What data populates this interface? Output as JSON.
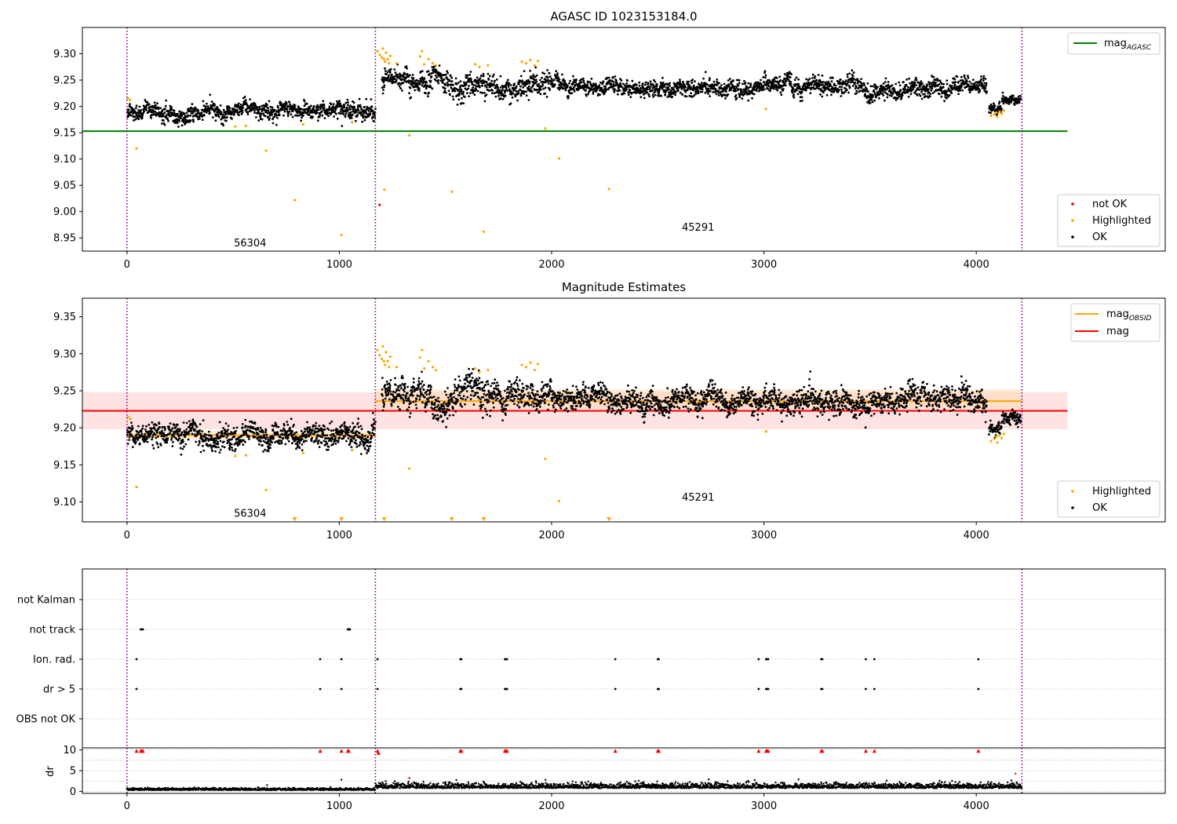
{
  "figure": {
    "colors": {
      "ok": "#000000",
      "highlighted": "#FFA500",
      "not_ok": "#FF0000",
      "mag_agasc": "#008000",
      "mag": "#FF0000",
      "mag_obsid": "#FFA500",
      "obsid_boundary": "#800080",
      "band_mag": "#FFC0C0",
      "band_obsid": "#FFD8A8",
      "grid": "#B0B0B0"
    }
  },
  "chart_data": [
    {
      "type": "scatter",
      "title": "AGASC ID 1023153184.0",
      "xlim": [
        -210,
        4890
      ],
      "ylim": [
        8.925,
        9.35
      ],
      "xticks": [
        0,
        1000,
        2000,
        3000,
        4000
      ],
      "yticks": [
        8.95,
        9.0,
        9.05,
        9.1,
        9.15,
        9.2,
        9.25,
        9.3
      ],
      "ytick_labels": [
        "8.95",
        "9.00",
        "9.05",
        "9.10",
        "9.15",
        "9.20",
        "9.25",
        "9.30"
      ],
      "obsid_boundaries": [
        0,
        1170,
        4215
      ],
      "obsid_labels": [
        {
          "text": "56304",
          "x": 580,
          "y": 8.94
        },
        {
          "text": "45291",
          "x": 2690,
          "y": 8.97
        }
      ],
      "lines": [
        {
          "name": "mag",
          "subscript": "AGASC",
          "y": 9.153,
          "x_range": [
            -210,
            4430
          ],
          "color": "#008000"
        }
      ],
      "series": [
        {
          "name": "OK",
          "color": "#000000",
          "segments": [
            {
              "x_range": [
                0,
                1170
              ],
              "level": 9.19,
              "spread": 0.012
            },
            {
              "x_range": [
                1200,
                1400
              ],
              "level": 9.25,
              "spread": 0.015
            },
            {
              "x_range": [
                1400,
                1700
              ],
              "level": 9.24,
              "spread": 0.017
            },
            {
              "x_range": [
                1700,
                2000
              ],
              "level": 9.245,
              "spread": 0.017
            },
            {
              "x_range": [
                2000,
                3200
              ],
              "level": 9.235,
              "spread": 0.012
            },
            {
              "x_range": [
                3200,
                4050
              ],
              "level": 9.235,
              "spread": 0.013
            },
            {
              "x_range": [
                4060,
                4120
              ],
              "level": 9.2,
              "spread": 0.008
            },
            {
              "x_range": [
                4120,
                4210
              ],
              "level": 9.215,
              "spread": 0.007
            }
          ]
        },
        {
          "name": "Highlighted",
          "color": "#FFA500",
          "points": [
            [
              5,
              9.215
            ],
            [
              15,
              9.212
            ],
            [
              45,
              9.12
            ],
            [
              510,
              9.162
            ],
            [
              560,
              9.163
            ],
            [
              655,
              9.116
            ],
            [
              790,
              9.022
            ],
            [
              830,
              9.166
            ],
            [
              1010,
              8.956
            ],
            [
              1060,
              9.17
            ],
            [
              1180,
              9.305
            ],
            [
              1190,
              9.298
            ],
            [
              1200,
              9.293
            ],
            [
              1205,
              9.31
            ],
            [
              1210,
              9.29
            ],
            [
              1215,
              9.285
            ],
            [
              1220,
              9.302
            ],
            [
              1228,
              9.29
            ],
            [
              1235,
              9.282
            ],
            [
              1240,
              9.296
            ],
            [
              1212,
              9.042
            ],
            [
              1270,
              9.282
            ],
            [
              1330,
              9.145
            ],
            [
              1380,
              9.295
            ],
            [
              1390,
              9.305
            ],
            [
              1400,
              9.28
            ],
            [
              1420,
              9.29
            ],
            [
              1440,
              9.282
            ],
            [
              1455,
              9.278
            ],
            [
              1530,
              9.038
            ],
            [
              1640,
              9.28
            ],
            [
              1660,
              9.275
            ],
            [
              1680,
              8.962
            ],
            [
              1700,
              9.278
            ],
            [
              1860,
              9.285
            ],
            [
              1880,
              9.282
            ],
            [
              1900,
              9.288
            ],
            [
              1920,
              9.278
            ],
            [
              1935,
              9.286
            ],
            [
              1970,
              9.158
            ],
            [
              2035,
              9.101
            ],
            [
              2270,
              9.043
            ],
            [
              3010,
              9.195
            ],
            [
              4070,
              9.182
            ],
            [
              4085,
              9.185
            ],
            [
              4095,
              9.188
            ],
            [
              4100,
              9.18
            ],
            [
              4110,
              9.19
            ],
            [
              4120,
              9.186
            ],
            [
              4130,
              9.192
            ]
          ]
        },
        {
          "name": "not OK",
          "color": "#FF0000",
          "points": [
            [
              1190,
              9.013
            ]
          ]
        }
      ],
      "legend_upper": {
        "entries": [
          {
            "label": "mag",
            "subscript": "AGASC"
          }
        ],
        "placement": "upper right"
      },
      "legend_lower": {
        "entries": [
          "not OK",
          "Highlighted",
          "OK"
        ],
        "placement": "lower right"
      }
    },
    {
      "type": "scatter",
      "title": "Magnitude Estimates",
      "xlim": [
        -210,
        4890
      ],
      "ylim": [
        9.073,
        9.375
      ],
      "xticks": [
        0,
        1000,
        2000,
        3000,
        4000
      ],
      "yticks": [
        9.1,
        9.15,
        9.2,
        9.25,
        9.3,
        9.35
      ],
      "ytick_labels": [
        "9.10",
        "9.15",
        "9.20",
        "9.25",
        "9.30",
        "9.35"
      ],
      "obsid_boundaries": [
        0,
        1170,
        4215
      ],
      "obsid_labels": [
        {
          "text": "56304",
          "x": 580,
          "y": 9.084
        },
        {
          "text": "45291",
          "x": 2690,
          "y": 9.106
        }
      ],
      "lines": [
        {
          "name": "mag",
          "subscript": "OBSID",
          "y": 9.19,
          "x_range": [
            0,
            1170
          ],
          "color": "#FFA500"
        },
        {
          "name": "mag",
          "subscript": "OBSID",
          "y": 9.236,
          "x_range": [
            1170,
            4215
          ],
          "color": "#FFA500"
        },
        {
          "name": "mag",
          "y": 9.223,
          "x_range": [
            -210,
            4430
          ],
          "color": "#FF0000"
        }
      ],
      "bands": [
        {
          "x_range": [
            -210,
            4430
          ],
          "y_range": [
            9.198,
            9.248
          ],
          "color": "#FFC0C0"
        },
        {
          "x_range": [
            1170,
            4215
          ],
          "y_range": [
            9.226,
            9.252
          ],
          "color": "#FFD8A8"
        },
        {
          "x_range": [
            0,
            1170
          ],
          "y_range": [
            9.184,
            9.196
          ],
          "color": "#FFD8A8"
        }
      ],
      "series": [
        {
          "name": "OK",
          "color": "#000000",
          "segments": [
            {
              "x_range": [
                0,
                1170
              ],
              "level": 9.19,
              "spread": 0.012
            },
            {
              "x_range": [
                1200,
                1400
              ],
              "level": 9.25,
              "spread": 0.015
            },
            {
              "x_range": [
                1400,
                1700
              ],
              "level": 9.24,
              "spread": 0.017
            },
            {
              "x_range": [
                1700,
                2000
              ],
              "level": 9.245,
              "spread": 0.017
            },
            {
              "x_range": [
                2000,
                3200
              ],
              "level": 9.235,
              "spread": 0.012
            },
            {
              "x_range": [
                3200,
                4050
              ],
              "level": 9.235,
              "spread": 0.013
            },
            {
              "x_range": [
                4060,
                4120
              ],
              "level": 9.2,
              "spread": 0.008
            },
            {
              "x_range": [
                4120,
                4210
              ],
              "level": 9.215,
              "spread": 0.007
            }
          ]
        },
        {
          "name": "Highlighted",
          "color": "#FFA500",
          "points": [
            [
              5,
              9.215
            ],
            [
              15,
              9.212
            ],
            [
              45,
              9.12
            ],
            [
              510,
              9.162
            ],
            [
              560,
              9.163
            ],
            [
              655,
              9.116
            ],
            [
              830,
              9.166
            ],
            [
              1060,
              9.17
            ],
            [
              1180,
              9.305
            ],
            [
              1190,
              9.298
            ],
            [
              1200,
              9.293
            ],
            [
              1205,
              9.31
            ],
            [
              1210,
              9.29
            ],
            [
              1215,
              9.285
            ],
            [
              1220,
              9.302
            ],
            [
              1228,
              9.29
            ],
            [
              1235,
              9.282
            ],
            [
              1240,
              9.296
            ],
            [
              1270,
              9.282
            ],
            [
              1330,
              9.145
            ],
            [
              1380,
              9.295
            ],
            [
              1390,
              9.305
            ],
            [
              1400,
              9.28
            ],
            [
              1420,
              9.29
            ],
            [
              1440,
              9.282
            ],
            [
              1455,
              9.278
            ],
            [
              1640,
              9.28
            ],
            [
              1660,
              9.275
            ],
            [
              1700,
              9.278
            ],
            [
              1860,
              9.285
            ],
            [
              1880,
              9.282
            ],
            [
              1900,
              9.288
            ],
            [
              1920,
              9.278
            ],
            [
              1935,
              9.286
            ],
            [
              1970,
              9.158
            ],
            [
              2035,
              9.101
            ],
            [
              3010,
              9.195
            ],
            [
              4070,
              9.182
            ],
            [
              4085,
              9.185
            ],
            [
              4095,
              9.188
            ],
            [
              4100,
              9.18
            ],
            [
              4110,
              9.19
            ],
            [
              4120,
              9.186
            ],
            [
              4130,
              9.192
            ]
          ]
        },
        {
          "name": "Highlighted (below range)",
          "color": "#FFA500",
          "marker": "triangle-down",
          "points": [
            [
              790,
              9.076
            ],
            [
              1010,
              9.076
            ],
            [
              1212,
              9.076
            ],
            [
              1530,
              9.076
            ],
            [
              1680,
              9.076
            ],
            [
              2270,
              9.076
            ]
          ]
        }
      ],
      "legend_upper": {
        "entries": [
          {
            "label": "mag",
            "subscript": "OBSID"
          },
          {
            "label": "mag"
          }
        ],
        "placement": "upper right"
      },
      "legend_lower": {
        "entries": [
          "Highlighted",
          "OK"
        ],
        "placement": "lower right"
      }
    },
    {
      "type": "scatter",
      "title": "",
      "xlim": [
        -210,
        4890
      ],
      "categories": [
        "not Kalman",
        "not track",
        "Ion. rad.",
        "dr > 5",
        "OBS not OK"
      ],
      "flags": [
        {
          "category": "not track",
          "x": [
            65,
            70,
            75,
            1040,
            1045,
            1050
          ]
        },
        {
          "category": "Ion. rad.",
          "x": [
            45,
            910,
            1010,
            1180,
            1570,
            1575,
            1780,
            1785,
            1790,
            2300,
            2500,
            2505,
            2975,
            3010,
            3015,
            3020,
            3270,
            3275,
            3480,
            3520,
            4010
          ]
        },
        {
          "category": "dr > 5",
          "x": [
            45,
            910,
            1010,
            1180,
            1570,
            1575,
            1780,
            1785,
            1790,
            2300,
            2500,
            2505,
            2975,
            3010,
            3015,
            3020,
            3270,
            3275,
            3480,
            3520,
            4010
          ]
        }
      ]
    },
    {
      "type": "scatter",
      "title": "",
      "ylabel": "dr",
      "xlim": [
        -210,
        4890
      ],
      "ylim": [
        -0.5,
        10.5
      ],
      "xticks": [
        0,
        1000,
        2000,
        3000,
        4000
      ],
      "yticks": [
        0,
        5,
        10
      ],
      "ytick_labels": [
        "0",
        "5",
        "10"
      ],
      "gridlines_y": [
        0,
        2.5,
        5,
        7.5,
        10
      ],
      "series": [
        {
          "name": "OK",
          "color": "#000000",
          "segments": [
            {
              "x_range": [
                0,
                1170
              ],
              "level": 0.4,
              "spread": 0.2
            },
            {
              "x_range": [
                1170,
                4215
              ],
              "level": 1.0,
              "spread": 0.5
            }
          ],
          "points": [
            [
              660,
              1.5
            ],
            [
              1010,
              2.8
            ],
            [
              1330,
              3.2
            ],
            [
              4190,
              2.2
            ]
          ]
        },
        {
          "name": "not OK",
          "color": "#FF0000",
          "marker": "triangle-up",
          "points": [
            [
              45,
              9.8
            ],
            [
              65,
              9.8
            ],
            [
              70,
              9.8
            ],
            [
              75,
              9.8
            ],
            [
              910,
              9.8
            ],
            [
              1010,
              9.8
            ],
            [
              1040,
              9.8
            ],
            [
              1045,
              9.8
            ],
            [
              1180,
              9.8
            ],
            [
              1185,
              9.3
            ],
            [
              1570,
              9.8
            ],
            [
              1575,
              9.8
            ],
            [
              1780,
              9.8
            ],
            [
              1785,
              9.8
            ],
            [
              1790,
              9.8
            ],
            [
              2300,
              9.8
            ],
            [
              2500,
              9.8
            ],
            [
              2505,
              9.8
            ],
            [
              2975,
              9.8
            ],
            [
              3010,
              9.8
            ],
            [
              3015,
              9.8
            ],
            [
              3020,
              9.8
            ],
            [
              3270,
              9.8
            ],
            [
              3275,
              9.8
            ],
            [
              3480,
              9.8
            ],
            [
              3520,
              9.8
            ],
            [
              4010,
              9.8
            ]
          ]
        },
        {
          "name": "not OK (small)",
          "color": "#FF0000",
          "points": [
            [
              1330,
              3.2
            ],
            [
              4185,
              4.3
            ]
          ]
        }
      ]
    }
  ]
}
